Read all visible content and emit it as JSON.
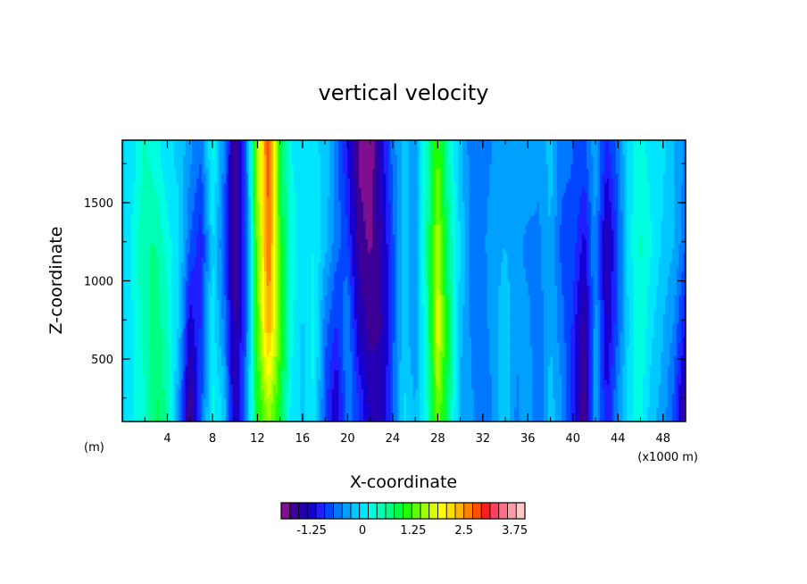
{
  "chart_data": {
    "type": "heatmap",
    "title": "vertical velocity",
    "xlabel": "X-coordinate",
    "ylabel": "Z-coordinate",
    "x_unit_left": "(m)",
    "x_unit_right": "(x1000 m)",
    "xlim": [
      0,
      50
    ],
    "ylim": [
      100,
      1900
    ],
    "x_ticks": [
      4,
      8,
      12,
      16,
      20,
      24,
      28,
      32,
      36,
      40,
      44,
      48
    ],
    "x_tick_labels": [
      "4",
      "8",
      "12",
      "16",
      "20",
      "24",
      "28",
      "32",
      "36",
      "40",
      "44",
      "48"
    ],
    "y_ticks": [
      500,
      1000,
      1500
    ],
    "y_tick_labels": [
      "500",
      "1000",
      "1500"
    ],
    "colorbar": {
      "min": -2.0,
      "max": 4.0,
      "step": 0.25,
      "tick_values": [
        -1.25,
        0,
        1.25,
        2.5,
        3.75
      ],
      "tick_labels": [
        "-1.25",
        "0",
        "1.25",
        "2.5",
        "3.75"
      ],
      "colors": [
        "#7f0f8f",
        "#3c0096",
        "#2400b4",
        "#1400d2",
        "#1e1eff",
        "#0046ff",
        "#0078ff",
        "#00a0ff",
        "#00c8ff",
        "#00e6ff",
        "#00ffe0",
        "#00ffb4",
        "#00ff80",
        "#00ff40",
        "#20ff00",
        "#60ff00",
        "#a0ff00",
        "#d8ff00",
        "#ffff00",
        "#ffdc00",
        "#ffb400",
        "#ff8200",
        "#ff5000",
        "#ff1e1e",
        "#ff4060",
        "#ff6e84",
        "#ff9ca8",
        "#ffc8c8"
      ]
    },
    "columns": [
      {
        "x": 0,
        "w": [
          0.2,
          0.2,
          0.2,
          0.2
        ]
      },
      {
        "x": 1,
        "w": [
          0.5,
          0.5,
          0.6,
          0.4
        ]
      },
      {
        "x": 2,
        "w": [
          0.7,
          0.9,
          1.0,
          0.8
        ]
      },
      {
        "x": 3,
        "w": [
          1.3,
          1.2,
          1.0,
          0.6
        ]
      },
      {
        "x": 4,
        "w": [
          0.9,
          0.8,
          0.6,
          0.3
        ]
      },
      {
        "x": 5,
        "w": [
          -0.2,
          0.2,
          0.3,
          0.2
        ]
      },
      {
        "x": 6,
        "w": [
          -1.7,
          -1.2,
          -0.5,
          -0.2
        ]
      },
      {
        "x": 7,
        "w": [
          -0.6,
          -0.7,
          -0.9,
          -0.5
        ]
      },
      {
        "x": 8,
        "w": [
          0.6,
          0.4,
          0.3,
          0.6
        ]
      },
      {
        "x": 9,
        "w": [
          0.2,
          -0.3,
          -0.5,
          -0.3
        ]
      },
      {
        "x": 10,
        "w": [
          -1.4,
          -1.6,
          -1.7,
          -1.7
        ]
      },
      {
        "x": 11,
        "w": [
          -0.2,
          -0.5,
          -0.6,
          -0.5
        ]
      },
      {
        "x": 12,
        "w": [
          1.5,
          1.8,
          2.0,
          2.2
        ]
      },
      {
        "x": 13,
        "w": [
          2.2,
          3.2,
          3.6,
          3.7
        ]
      },
      {
        "x": 14,
        "w": [
          1.4,
          1.8,
          1.6,
          1.4
        ]
      },
      {
        "x": 15,
        "w": [
          0.4,
          0.6,
          0.6,
          0.5
        ]
      },
      {
        "x": 16,
        "w": [
          0.2,
          0.2,
          0.4,
          0.4
        ]
      },
      {
        "x": 17,
        "w": [
          0.5,
          0.6,
          0.5,
          0.3
        ]
      },
      {
        "x": 18,
        "w": [
          -0.6,
          -0.4,
          0.1,
          0.2
        ]
      },
      {
        "x": 19,
        "w": [
          -1.3,
          -0.8,
          -0.4,
          -0.3
        ]
      },
      {
        "x": 20,
        "w": [
          -0.3,
          -0.2,
          -0.7,
          -1.0
        ]
      },
      {
        "x": 21,
        "w": [
          -0.7,
          -1.3,
          -1.6,
          -1.8
        ]
      },
      {
        "x": 22,
        "w": [
          -1.3,
          -1.6,
          -1.8,
          -2.0
        ]
      },
      {
        "x": 23,
        "w": [
          -1.4,
          -1.5,
          -1.4,
          -1.2
        ]
      },
      {
        "x": 24,
        "w": [
          -0.5,
          -0.6,
          -0.6,
          -0.4
        ]
      },
      {
        "x": 25,
        "w": [
          0.3,
          0.2,
          0.2,
          0.1
        ]
      },
      {
        "x": 26,
        "w": [
          0.0,
          -0.3,
          -0.2,
          -0.1
        ]
      },
      {
        "x": 27,
        "w": [
          0.6,
          0.8,
          0.9,
          0.8
        ]
      },
      {
        "x": 28,
        "w": [
          2.0,
          2.5,
          2.2,
          1.8
        ]
      },
      {
        "x": 29,
        "w": [
          1.1,
          1.2,
          1.0,
          0.8
        ]
      },
      {
        "x": 30,
        "w": [
          -0.1,
          0.1,
          0.2,
          0.1
        ]
      },
      {
        "x": 31,
        "w": [
          -0.2,
          -0.3,
          -0.3,
          -0.4
        ]
      },
      {
        "x": 32,
        "w": [
          -0.5,
          -0.4,
          -0.3,
          -0.4
        ]
      },
      {
        "x": 33,
        "w": [
          -0.2,
          -0.1,
          -0.1,
          -0.2
        ]
      },
      {
        "x": 34,
        "w": [
          0.2,
          0.2,
          0.0,
          0.0
        ]
      },
      {
        "x": 35,
        "w": [
          -0.3,
          -0.2,
          -0.2,
          -0.1
        ]
      },
      {
        "x": 36,
        "w": [
          -0.1,
          -0.2,
          -0.3,
          -0.1
        ]
      },
      {
        "x": 37,
        "w": [
          -0.5,
          -0.4,
          -0.3,
          -0.2
        ]
      },
      {
        "x": 38,
        "w": [
          0.1,
          0.0,
          0.0,
          0.1
        ]
      },
      {
        "x": 39,
        "w": [
          -0.2,
          -0.4,
          -0.6,
          -0.4
        ]
      },
      {
        "x": 40,
        "w": [
          -0.9,
          -0.8,
          -0.6,
          -0.5
        ]
      },
      {
        "x": 41,
        "w": [
          -1.8,
          -1.6,
          -1.1,
          -0.6
        ]
      },
      {
        "x": 42,
        "w": [
          0.0,
          -0.1,
          -0.2,
          -0.1
        ]
      },
      {
        "x": 43,
        "w": [
          -1.0,
          -1.3,
          -1.5,
          -0.9
        ]
      },
      {
        "x": 44,
        "w": [
          -0.2,
          -0.5,
          -0.6,
          -0.4
        ]
      },
      {
        "x": 45,
        "w": [
          0.4,
          0.3,
          0.4,
          0.4
        ]
      },
      {
        "x": 46,
        "w": [
          0.6,
          0.7,
          0.8,
          0.6
        ]
      },
      {
        "x": 47,
        "w": [
          0.1,
          0.3,
          0.5,
          0.4
        ]
      },
      {
        "x": 48,
        "w": [
          -0.1,
          0.0,
          0.2,
          0.3
        ]
      },
      {
        "x": 49,
        "w": [
          -0.6,
          -0.3,
          0.0,
          0.0
        ]
      },
      {
        "x": 50,
        "w": [
          -1.7,
          -1.0,
          -0.5,
          -0.3
        ]
      }
    ],
    "column_levels_z": [
      200,
      700,
      1250,
      1800
    ]
  }
}
